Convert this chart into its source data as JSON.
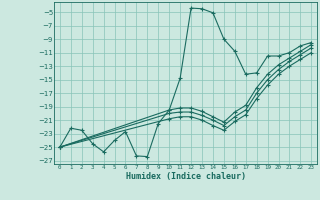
{
  "xlabel": "Humidex (Indice chaleur)",
  "bg_color": "#cce8e0",
  "grid_color": "#88c4b8",
  "line_color": "#1a6b60",
  "xlim": [
    -0.5,
    23.5
  ],
  "ylim": [
    -27.5,
    -3.5
  ],
  "xticks": [
    0,
    1,
    2,
    3,
    4,
    5,
    6,
    7,
    8,
    9,
    10,
    11,
    12,
    13,
    14,
    15,
    16,
    17,
    18,
    19,
    20,
    21,
    22,
    23
  ],
  "yticks": [
    -5,
    -7,
    -9,
    -11,
    -13,
    -15,
    -17,
    -19,
    -21,
    -23,
    -25,
    -27
  ],
  "series1_x": [
    0,
    1,
    2,
    3,
    4,
    5,
    6,
    7,
    8,
    9,
    10,
    11,
    12,
    13,
    14,
    15,
    16,
    17,
    18,
    19,
    20,
    21,
    22,
    23
  ],
  "series1_y": [
    -25.0,
    -22.2,
    -22.5,
    -24.5,
    -25.7,
    -24.0,
    -22.7,
    -26.3,
    -26.4,
    -21.5,
    -19.5,
    -14.8,
    -4.4,
    -4.5,
    -5.1,
    -9.0,
    -10.8,
    -14.2,
    -14.0,
    -11.5,
    -11.5,
    -11.0,
    -10.0,
    -9.5
  ],
  "series2_x": [
    0,
    10,
    11,
    12,
    13,
    14,
    15,
    16,
    17,
    18,
    19,
    20,
    21,
    22,
    23
  ],
  "series2_y": [
    -25.0,
    -19.5,
    -19.2,
    -19.2,
    -19.7,
    -20.5,
    -21.3,
    -19.8,
    -18.8,
    -16.2,
    -14.2,
    -12.8,
    -11.8,
    -10.8,
    -9.8
  ],
  "series3_x": [
    0,
    10,
    11,
    12,
    13,
    14,
    15,
    16,
    17,
    18,
    19,
    20,
    21,
    22,
    23
  ],
  "series3_y": [
    -25.0,
    -20.0,
    -19.8,
    -19.8,
    -20.3,
    -21.0,
    -21.8,
    -20.5,
    -19.5,
    -17.0,
    -15.0,
    -13.5,
    -12.3,
    -11.3,
    -10.3
  ],
  "series4_x": [
    0,
    10,
    11,
    12,
    13,
    14,
    15,
    16,
    17,
    18,
    19,
    20,
    21,
    22,
    23
  ],
  "series4_y": [
    -25.0,
    -20.8,
    -20.5,
    -20.5,
    -21.0,
    -21.8,
    -22.5,
    -21.2,
    -20.2,
    -17.8,
    -15.8,
    -14.2,
    -13.0,
    -12.0,
    -11.0
  ]
}
